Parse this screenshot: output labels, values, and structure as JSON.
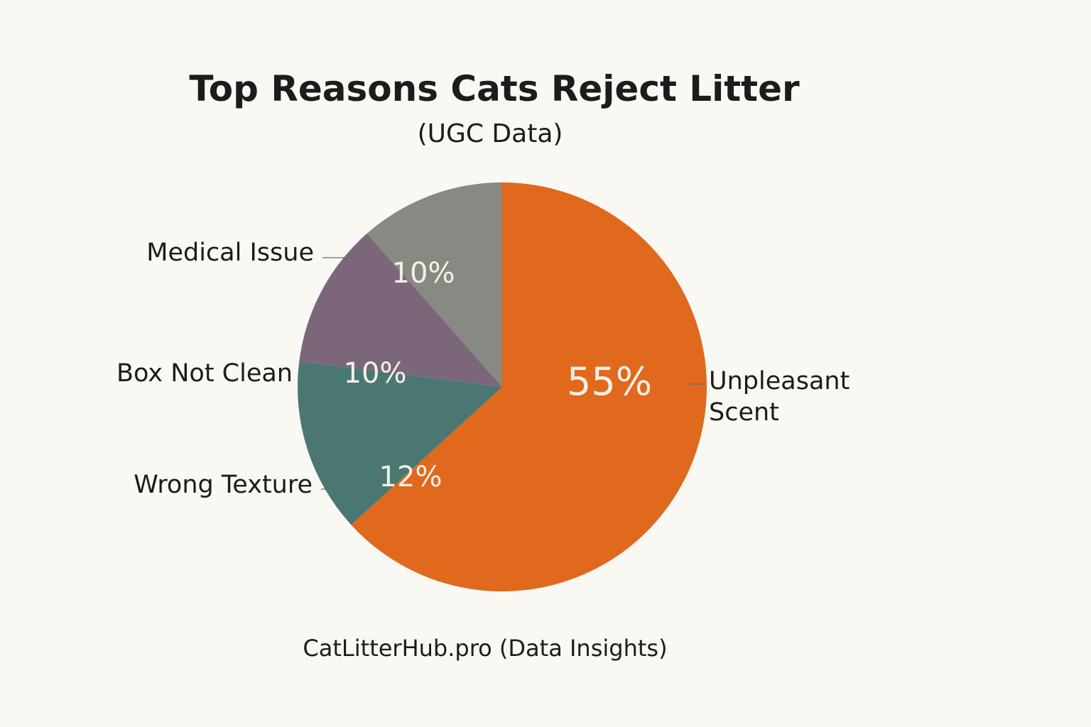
{
  "chart_data": {
    "type": "pie",
    "title": "Top Reasons Cats Reject Litter",
    "subtitle": "(UGC Data)",
    "source": "CatLitterHub.pro (Data Insights)",
    "slices": [
      {
        "label": "Unpleasant Scent",
        "label_lines": [
          "Unpleasant",
          "Scent"
        ],
        "value": 55,
        "display": "55%",
        "color": "#e0691e"
      },
      {
        "label": "Wrong Texture",
        "label_lines": [
          "Wrong Texture"
        ],
        "value": 12,
        "display": "12%",
        "color": "#4b7772"
      },
      {
        "label": "Box Not Clean",
        "label_lines": [
          "Box Not Clean"
        ],
        "value": 10,
        "display": "10%",
        "color": "#7b6779"
      },
      {
        "label": "Medical Issue",
        "label_lines": [
          "Medical Issue"
        ],
        "value": 10,
        "display": "10%",
        "color": "#878983"
      }
    ]
  }
}
